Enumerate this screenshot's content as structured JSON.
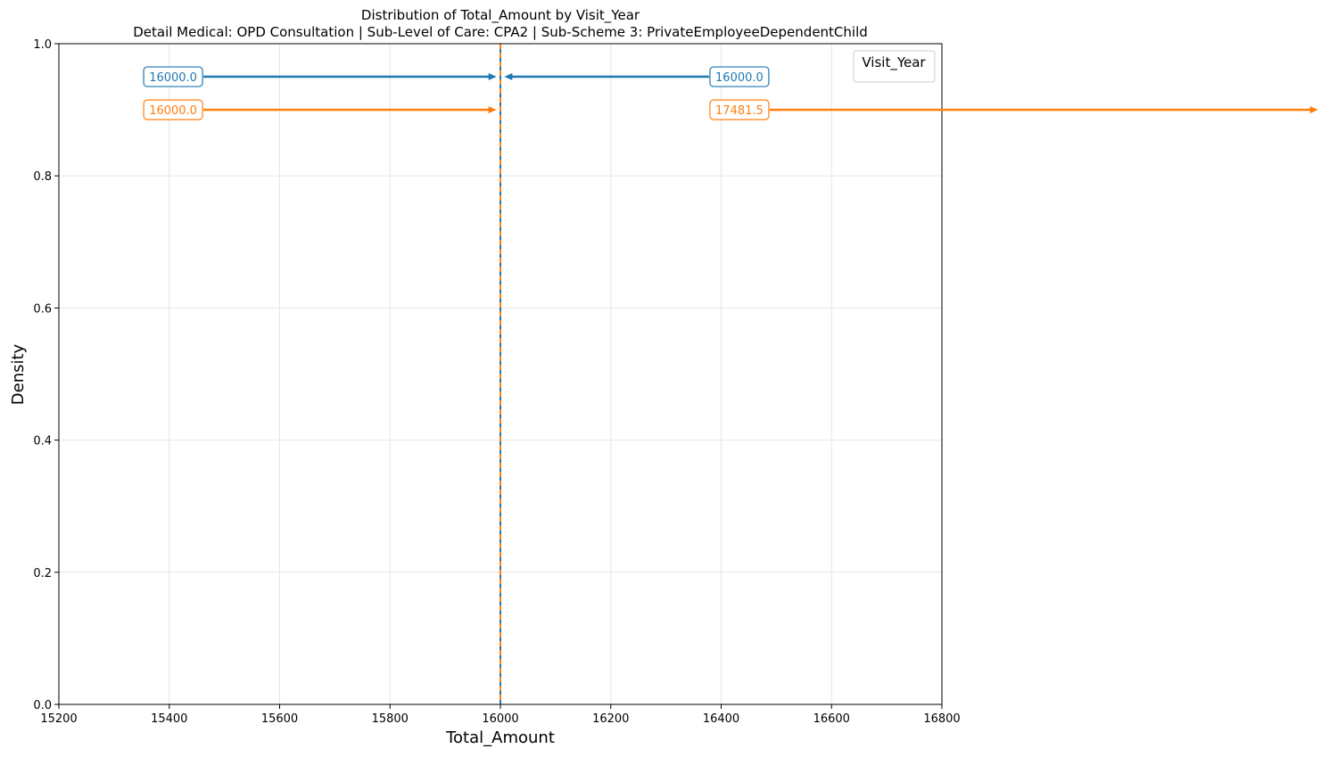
{
  "chart_data": {
    "type": "line",
    "title": "Distribution of Total_Amount by Visit_Year",
    "subtitle": "Detail Medical: OPD Consultation | Sub-Level of Care: CPA2 | Sub-Scheme 3: PrivateEmployeeDependentChild",
    "xlabel": "Total_Amount",
    "ylabel": "Density",
    "xlim": [
      15200,
      16800
    ],
    "ylim": [
      0,
      1.0
    ],
    "xticks": [
      "15200",
      "15400",
      "15600",
      "15800",
      "16000",
      "16200",
      "16400",
      "16600",
      "16800"
    ],
    "yticks": [
      "0.0",
      "0.2",
      "0.4",
      "0.6",
      "0.8",
      "1.0"
    ],
    "grid": true,
    "legend": {
      "title": "Visit_Year",
      "placement": "top-right",
      "entries": []
    },
    "colors": {
      "blue": "#1f77b4",
      "orange": "#ff7f0e"
    },
    "vertical_lines": [
      {
        "x": 16000,
        "color": "#1f77b4",
        "style": "solid"
      },
      {
        "x": 16000,
        "color": "#ff7f0e",
        "style": "dashed"
      }
    ],
    "annotations": [
      {
        "label": "16000.0",
        "color": "#1f77b4",
        "y": 0.95,
        "label_x": 15407,
        "target_x": 15993
      },
      {
        "label": "16000.0",
        "color": "#1f77b4",
        "y": 0.95,
        "label_x": 16433,
        "target_x": 16007
      },
      {
        "label": "16000.0",
        "color": "#ff7f0e",
        "y": 0.9,
        "label_x": 15407,
        "target_x": 15993
      },
      {
        "label": "17481.5",
        "color": "#ff7f0e",
        "y": 0.9,
        "label_x": 16433,
        "target_x": 17481.5
      }
    ]
  }
}
